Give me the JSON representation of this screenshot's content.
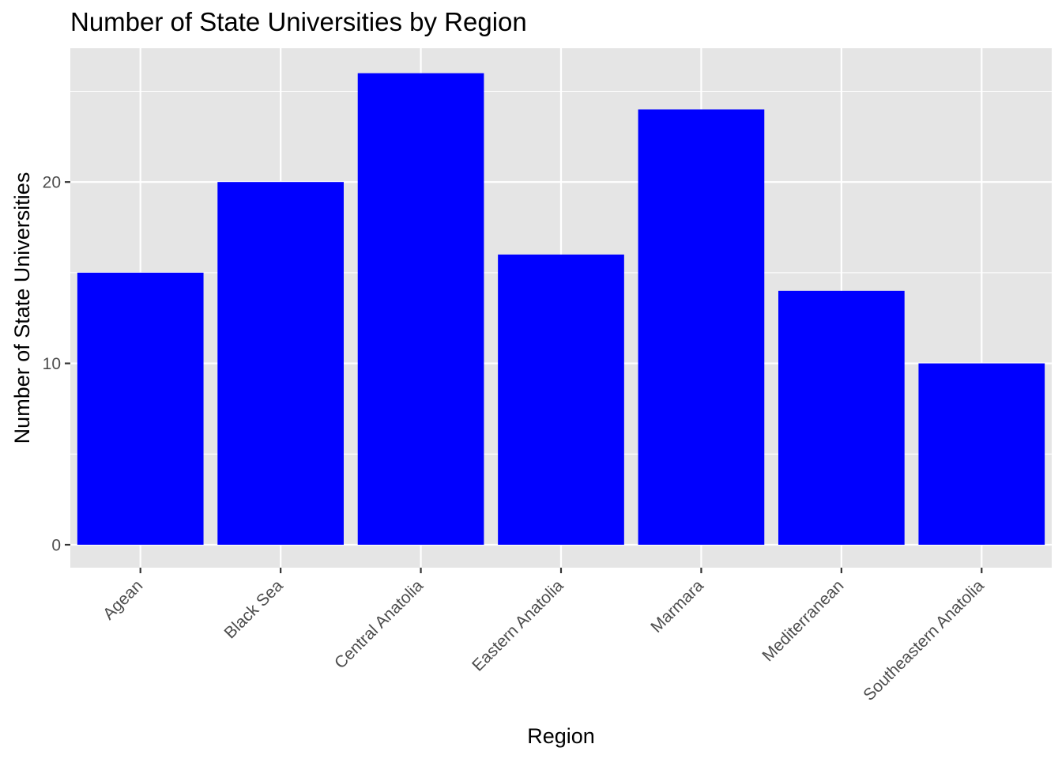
{
  "chart_data": {
    "type": "bar",
    "title": "Number of State Universities by Region",
    "xlabel": "Region",
    "ylabel": "Number of State Universities",
    "categories": [
      "Agean",
      "Black Sea",
      "Central Anatolia",
      "Eastern Anatolia",
      "Marmara",
      "Mediterranean",
      "Southeastern Anatolia"
    ],
    "values": [
      15,
      20,
      26,
      16,
      24,
      14,
      10
    ],
    "ylim": [
      0,
      27.3
    ],
    "yticks": [
      0,
      10,
      20
    ],
    "grid": true,
    "bar_color": "#0000ff",
    "panel_color": "#e5e5e5",
    "grid_color": "#ffffff"
  }
}
